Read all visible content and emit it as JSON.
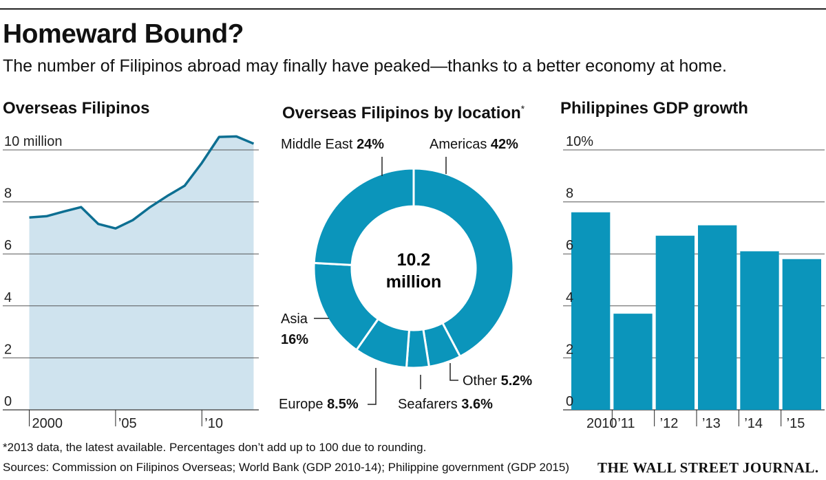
{
  "header": {
    "title": "Homeward Bound?",
    "subtitle": "The number of Filipinos abroad may finally have peaked—thanks to a better economy at home."
  },
  "footer": {
    "footnote": "*2013 data, the latest available. Percentages don’t add up to 100 due to rounding.",
    "sources": "Sources: Commission on Filipinos Overseas; World Bank (GDP 2010-14); Philippine government (GDP 2015)",
    "brand": "THE WALL STREET JOURNAL."
  },
  "colors": {
    "accent": "#0b95bb",
    "area_fill": "#cfe3ee",
    "line": "#0d6f92",
    "grid": "#555555"
  },
  "chart_data": [
    {
      "type": "area",
      "title": "Overseas Filipinos",
      "x": [
        2000,
        2001,
        2002,
        2003,
        2004,
        2005,
        2006,
        2007,
        2008,
        2009,
        2010,
        2011,
        2012,
        2013
      ],
      "tick_values": [
        2000,
        2005,
        2010
      ],
      "x_tick_labels": [
        "2000",
        "’05",
        "’10"
      ],
      "series": [
        {
          "values": [
            7.4,
            7.45,
            7.63,
            7.8,
            7.15,
            6.98,
            7.3,
            7.8,
            8.23,
            8.62,
            9.5,
            10.5,
            10.52,
            10.24
          ]
        }
      ],
      "ylim": [
        0,
        10
      ],
      "y_ticks": [
        0,
        2,
        4,
        6,
        8,
        10
      ],
      "y_tick_labels": [
        "0",
        "2",
        "4",
        "6",
        "8",
        "10 million"
      ],
      "xlim": [
        1999.5,
        2013.3
      ]
    },
    {
      "type": "pie",
      "title": "Overseas Filipinos by location",
      "title_mark": "*",
      "center_value": "10.2",
      "center_unit": "million",
      "slices": [
        {
          "name": "Americas",
          "value": 42
        },
        {
          "name": "Other",
          "value": 5.2
        },
        {
          "name": "Seafarers",
          "value": 3.6
        },
        {
          "name": "Europe",
          "value": 8.5
        },
        {
          "name": "Asia",
          "value": 16
        },
        {
          "name": "Middle East",
          "value": 24
        }
      ],
      "labels": {
        "middle_east": {
          "name": "Middle East",
          "pct": "24%"
        },
        "americas": {
          "name": "Americas",
          "pct": "42%"
        },
        "asia": {
          "name": "Asia",
          "pct": "16%"
        },
        "europe": {
          "name": "Europe",
          "pct": "8.5%"
        },
        "seafarers": {
          "name": "Seafarers",
          "pct": "3.6%"
        },
        "other": {
          "name": "Other",
          "pct": "5.2%"
        }
      }
    },
    {
      "type": "bar",
      "title": "Philippines GDP growth",
      "categories": [
        "2010",
        "’11",
        "’12",
        "’13",
        "’14",
        "’15"
      ],
      "values": [
        7.6,
        3.7,
        6.7,
        7.1,
        6.1,
        5.8
      ],
      "ylim": [
        0,
        10
      ],
      "y_ticks": [
        0,
        2,
        4,
        6,
        8,
        10
      ],
      "y_tick_labels": [
        "0",
        "2",
        "4",
        "6",
        "8",
        "10%"
      ]
    }
  ]
}
